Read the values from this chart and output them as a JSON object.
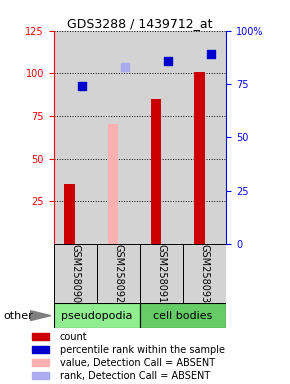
{
  "title": "GDS3288 / 1439712_at",
  "samples": [
    "GSM258090",
    "GSM258092",
    "GSM258091",
    "GSM258093"
  ],
  "count_values": [
    35,
    null,
    85,
    101
  ],
  "count_absent": [
    null,
    70,
    null,
    null
  ],
  "percentile_values": [
    74,
    null,
    86,
    89
  ],
  "percentile_absent": [
    null,
    83,
    null,
    null
  ],
  "ylim_left": [
    0,
    125
  ],
  "ylim_right": [
    0,
    100
  ],
  "left_ticks": [
    25,
    50,
    75,
    100,
    125
  ],
  "right_ticks": [
    0,
    25,
    50,
    75,
    100
  ],
  "right_tick_labels": [
    "0",
    "25",
    "50",
    "75",
    "100%"
  ],
  "count_color": "#CC0000",
  "count_absent_color": "#FFB0B0",
  "percentile_color": "#0000CC",
  "percentile_absent_color": "#AAAAEE",
  "bar_width": 0.25,
  "dot_size": 28,
  "xarea_color": "#D3D3D3",
  "pseudopodia_color": "#90EE90",
  "cellbodies_color": "#66CC66",
  "legend_items": [
    {
      "label": "count",
      "color": "#CC0000"
    },
    {
      "label": "percentile rank within the sample",
      "color": "#0000CC"
    },
    {
      "label": "value, Detection Call = ABSENT",
      "color": "#FFB0B0"
    },
    {
      "label": "rank, Detection Call = ABSENT",
      "color": "#AAAAEE"
    }
  ],
  "font_size_title": 9,
  "font_size_ticks": 7,
  "font_size_legend": 7,
  "font_size_group": 8,
  "font_size_sample": 7,
  "font_size_other": 8
}
